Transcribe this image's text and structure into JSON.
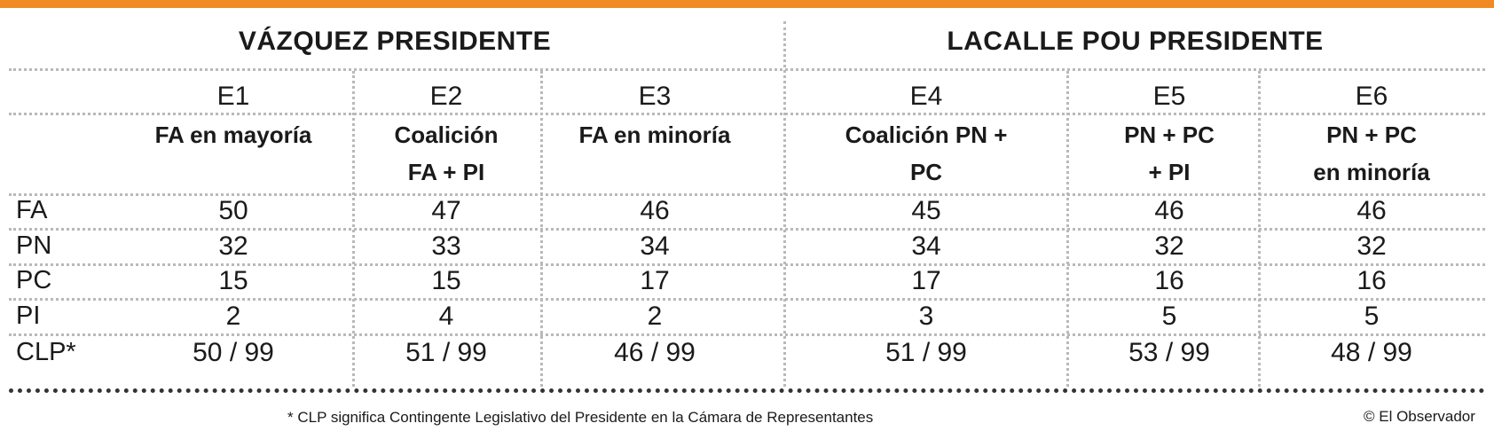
{
  "chart_data": {
    "type": "table",
    "groups": [
      "VÁZQUEZ PRESIDENTE",
      "LACALLE POU PRESIDENTE"
    ],
    "scenarios": [
      {
        "code": "E1",
        "desc_lines": [
          "FA en mayoría"
        ]
      },
      {
        "code": "E2",
        "desc_lines": [
          "Coalición",
          "FA + PI"
        ]
      },
      {
        "code": "E3",
        "desc_lines": [
          "FA en minoría"
        ]
      },
      {
        "code": "E4",
        "desc_lines": [
          "Coalición PN + PC"
        ]
      },
      {
        "code": "E5",
        "desc_lines": [
          "PN + PC",
          "+ PI"
        ]
      },
      {
        "code": "E6",
        "desc_lines": [
          "PN + PC",
          "en minoría"
        ]
      }
    ],
    "rows": [
      {
        "party": "FA",
        "values": [
          "50",
          "47",
          "46",
          "45",
          "46",
          "46"
        ]
      },
      {
        "party": "PN",
        "values": [
          "32",
          "33",
          "34",
          "34",
          "32",
          "32"
        ]
      },
      {
        "party": "PC",
        "values": [
          "15",
          "15",
          "17",
          "17",
          "16",
          "16"
        ]
      },
      {
        "party": "PI",
        "values": [
          "2",
          "4",
          "2",
          "3",
          "5",
          "5"
        ]
      },
      {
        "party": "CLP*",
        "values": [
          "50 / 99",
          "51 / 99",
          "46 / 99",
          "51 / 99",
          "53 / 99",
          "48 / 99"
        ]
      }
    ]
  },
  "footnote": "* CLP significa Contingente Legislativo del Presidente en la Cámara de Representantes",
  "credit": "© El Observador",
  "colors": {
    "accent": "#f08a24",
    "text": "#1a1a1a",
    "separator": "#b9b9b9"
  }
}
